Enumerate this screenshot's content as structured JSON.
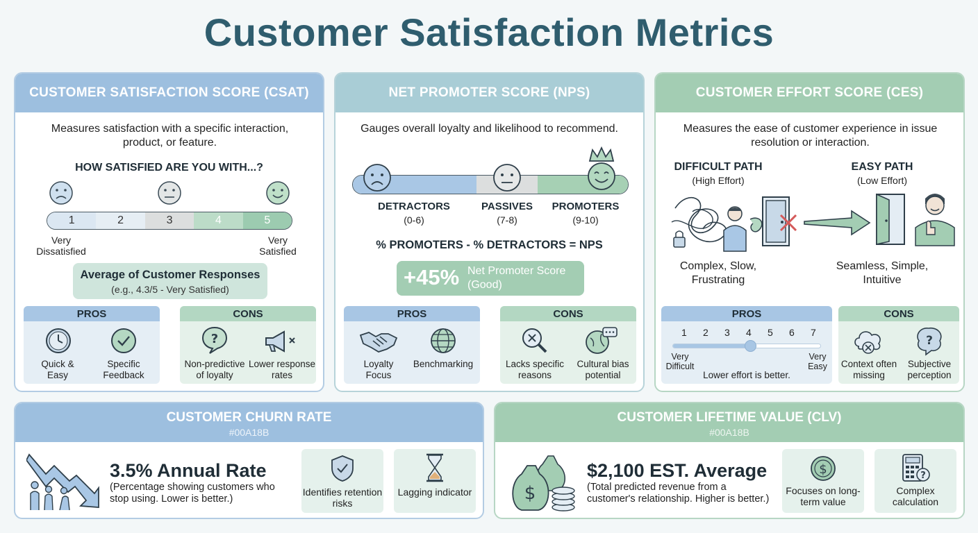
{
  "title": "Customer Satisfaction Metrics",
  "csat": {
    "header": "CUSTOMER SATISFACTION SCORE (CSAT)",
    "description": "Measures satisfaction with a specific interaction, product, or feature.",
    "question": "HOW SATISFIED ARE YOU WITH...?",
    "scale": [
      "1",
      "2",
      "3",
      "4",
      "5"
    ],
    "low_label": "Very Dissatisfied",
    "high_label": "Very Satisfied",
    "result_title": "Average of Customer Responses",
    "result_sub": "(e.g., 4.3/5 - Very Satisfied)",
    "pros_label": "PROS",
    "pros": [
      "Quick & Easy",
      "Specific Feedback"
    ],
    "cons_label": "CONS",
    "cons": [
      "Non-predictive of loyalty",
      "Lower response rates"
    ]
  },
  "nps": {
    "header": "NET PROMOTER SCORE (NPS)",
    "description": "Gauges overall loyalty and likelihood to recommend.",
    "groups": [
      {
        "name": "DETRACTORS",
        "range": "(0-6)"
      },
      {
        "name": "PASSIVES",
        "range": "(7-8)"
      },
      {
        "name": "PROMOTERS",
        "range": "(9-10)"
      }
    ],
    "formula": "% PROMOTERS - % DETRACTORS = NPS",
    "score_value": "+45%",
    "score_label": "Net Promoter Score",
    "score_note": "(Good)",
    "pros_label": "PROS",
    "pros": [
      "Loyalty Focus",
      "Benchmarking"
    ],
    "cons_label": "CONS",
    "cons": [
      "Lacks specific reasons",
      "Cultural bias potential"
    ]
  },
  "ces": {
    "header": "CUSTOMER EFFORT SCORE (CES)",
    "description": "Measures the ease of customer experience in issue resolution or interaction.",
    "difficult_title": "DIFFICULT PATH",
    "difficult_sub": "(High Effort)",
    "difficult_desc": "Complex, Slow, Frustrating",
    "easy_title": "EASY PATH",
    "easy_sub": "(Low Effort)",
    "easy_desc": "Seamless, Simple, Intuitive",
    "pros_label": "PROS",
    "scale": [
      "1",
      "2",
      "3",
      "4",
      "5",
      "6",
      "7"
    ],
    "slider_value": 4,
    "low_label": "Very Difficult",
    "high_label": "Very Easy",
    "scale_note": "Lower effort is better.",
    "cons_label": "CONS",
    "cons": [
      "Context often missing",
      "Subjective perception"
    ]
  },
  "churn": {
    "header": "CUSTOMER CHURN RATE",
    "code": "#00A18B",
    "headline": "3.5% Annual Rate",
    "note": "(Percentage showing customers who stop using. Lower is better.)",
    "items": [
      "Identifies retention risks",
      "Lagging indicator"
    ]
  },
  "clv": {
    "header": "CUSTOMER LIFETIME VALUE (CLV)",
    "code": "#00A18B",
    "headline": "$2,100 EST. Average",
    "note": "(Total predicted revenue from a customer's relationship. Higher is better.)",
    "items": [
      "Focuses on long-term value",
      "Complex calculation"
    ]
  },
  "colors": {
    "blue": "#9dbfdf",
    "teal": "#a9cdd6",
    "green": "#a3cdb3",
    "title": "#2f5d6e"
  }
}
